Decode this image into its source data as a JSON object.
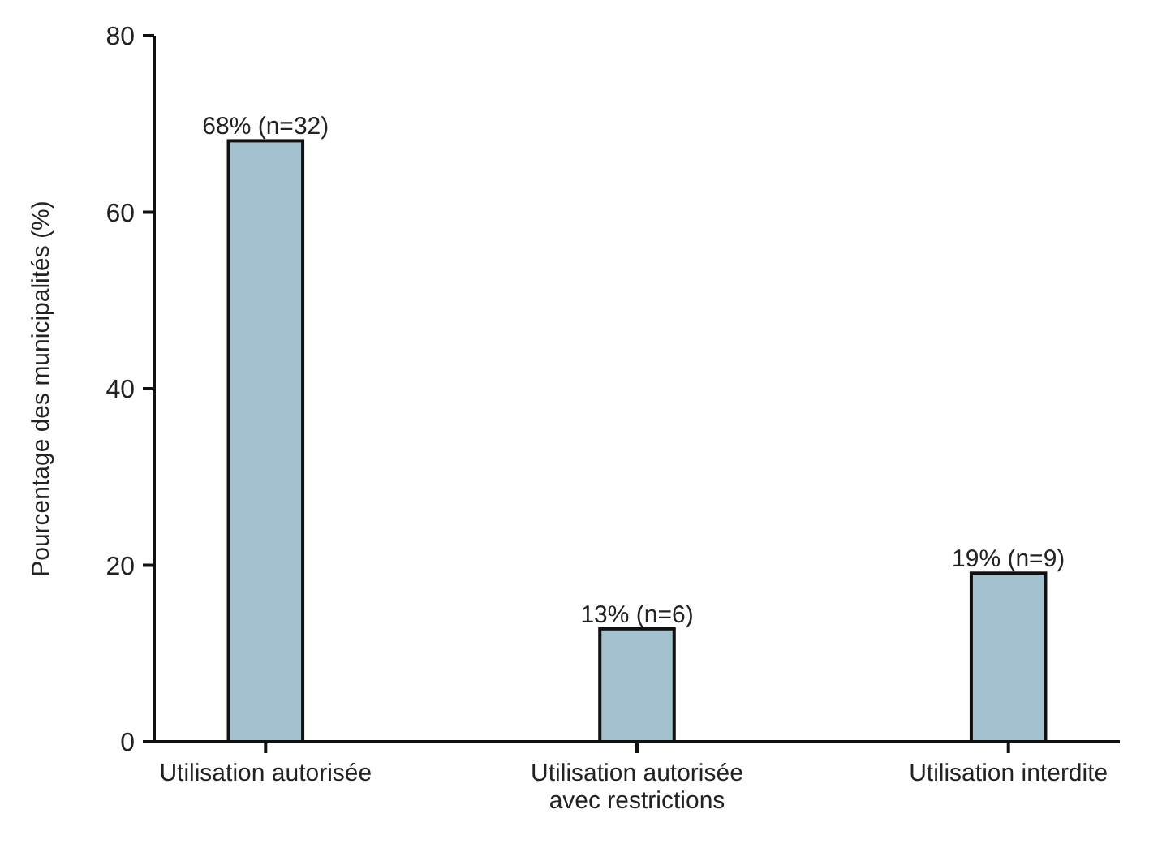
{
  "chart_data": {
    "type": "bar",
    "ylabel": "Pourcentage des municipalités (%)",
    "categories": [
      "Utilisation autorisée",
      "Utilisation autorisée avec restrictions",
      "Utilisation interdite"
    ],
    "values": [
      68.1,
      12.8,
      19.1
    ],
    "value_labels": [
      "68% (n=32)",
      "13% (n=6)",
      "19% (n=9)"
    ],
    "color": "#a3c1cf",
    "ylim": [
      0,
      80
    ],
    "yticks": [
      0,
      20,
      40,
      60,
      80
    ],
    "grid": false
  }
}
